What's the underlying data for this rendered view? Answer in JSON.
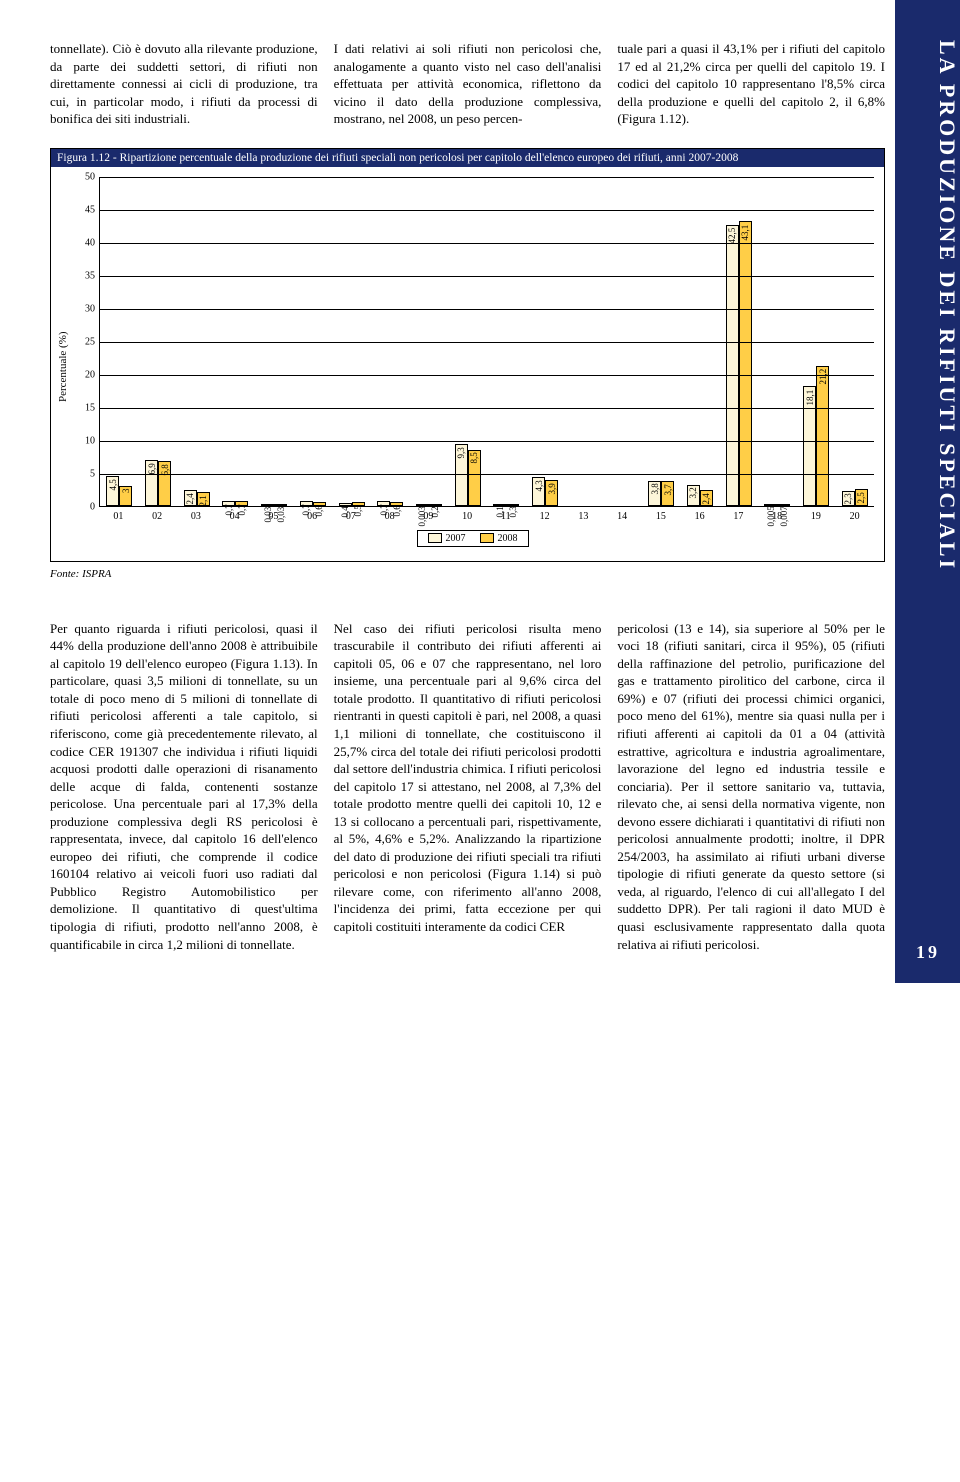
{
  "sidebar": {
    "title": "LA PRODUZIONE DEI RIFIUTI SPECIALI"
  },
  "page_number": "19",
  "top_paragraphs": {
    "col1": "tonnellate). Ciò è dovuto alla rilevante produzione, da parte dei suddetti settori, di rifiuti non direttamente connessi ai cicli di produzione, tra cui, in particolar modo, i rifiuti da processi di bonifica dei siti industriali.",
    "col2": "I dati relativi ai soli rifiuti non pericolosi che, analogamente a quanto visto nel caso dell'analisi effettuata per attività economica, riflettono da vicino il dato della produzione complessiva, mostrano, nel 2008, un peso percen-",
    "col3": "tuale pari a quasi il 43,1% per i rifiuti del capitolo 17 ed al 21,2% circa per quelli del capitolo 19. I codici del capitolo 10 rappresentano l'8,5% circa della produzione e quelli del capitolo 2, il 6,8% (Figura 1.12)."
  },
  "figure": {
    "title": "Figura 1.12 - Ripartizione percentuale della produzione dei rifiuti speciali non pericolosi per capitolo dell'elenco europeo dei rifiuti, anni 2007-2008",
    "ylabel": "Percentuale (%)",
    "ylim": [
      0,
      50
    ],
    "ytick_step": 5,
    "colors": {
      "2007": "#fdf6d9",
      "2008": "#ffce47",
      "grid": "#000000",
      "bg": "#ffffff"
    },
    "categories": [
      "01",
      "02",
      "03",
      "04",
      "05",
      "06",
      "07",
      "08",
      "09",
      "10",
      "11",
      "12",
      "13",
      "14",
      "15",
      "16",
      "17",
      "18",
      "19",
      "20"
    ],
    "series": [
      {
        "name": "2007",
        "values": [
          4.5,
          6.9,
          2.4,
          0.7,
          0.03,
          0.7,
          0.4,
          0.7,
          0.003,
          9.3,
          0.1,
          4.3,
          null,
          null,
          3.8,
          3.2,
          42.5,
          0.005,
          18.1,
          2.3
        ]
      },
      {
        "name": "2008",
        "values": [
          3.0,
          6.8,
          2.1,
          0.7,
          0.03,
          0.6,
          0.5,
          0.6,
          0.2,
          8.5,
          0.3,
          3.9,
          null,
          null,
          3.7,
          2.4,
          43.1,
          0.007,
          21.2,
          2.5
        ]
      }
    ],
    "legend": [
      "2007",
      "2008"
    ],
    "fonte": "Fonte: ISPRA"
  },
  "bottom_paragraphs": {
    "col1": "Per quanto riguarda i rifiuti pericolosi, quasi il 44% della produzione dell'anno 2008 è attribuibile al capitolo 19 dell'elenco europeo (Figura 1.13). In particolare, quasi 3,5 milioni di tonnellate, su un totale di poco meno di 5 milioni di tonnellate di rifiuti pericolosi afferenti a tale capitolo, si riferiscono, come già precedentemente rilevato, al codice CER 191307 che individua i rifiuti liquidi acquosi prodotti dalle operazioni di risanamento delle acque di falda, contenenti sostanze pericolose.\nUna percentuale pari al 17,3% della produzione complessiva degli RS pericolosi è rappresentata, invece, dal capitolo 16 dell'elenco europeo dei rifiuti, che comprende il codice 160104 relativo ai veicoli fuori uso radiati dal Pubblico Registro Automobilistico per demolizione. Il quantitativo di quest'ultima tipologia di rifiuti, prodotto nell'anno 2008, è quantificabile in circa 1,2 milioni di tonnellate.",
    "col2": "Nel caso dei rifiuti pericolosi risulta meno trascurabile il contributo dei rifiuti afferenti ai capitoli 05, 06 e 07 che rappresentano, nel loro insieme, una percentuale pari al 9,6% circa del totale prodotto. Il quantitativo di rifiuti pericolosi rientranti in questi capitoli è pari, nel 2008, a quasi 1,1 milioni di tonnellate, che costituiscono il 25,7% circa del totale dei rifiuti pericolosi prodotti dal settore dell'industria chimica.\nI rifiuti pericolosi del capitolo 17 si attestano, nel 2008, al 7,3% del totale prodotto mentre quelli dei capitoli 10, 12 e 13 si collocano a percentuali pari, rispettivamente, al 5%, 4,6% e 5,2%.\nAnalizzando la ripartizione del dato di produzione dei rifiuti speciali tra rifiuti pericolosi e non pericolosi (Figura 1.14) si può rilevare come, con riferimento all'anno 2008, l'incidenza dei primi, fatta eccezione per qui capitoli costituiti interamente da codici CER",
    "col3": "pericolosi (13 e 14), sia superiore al 50% per le voci 18 (rifiuti sanitari, circa il 95%), 05 (rifiuti della raffinazione del petrolio, purificazione del gas e trattamento pirolitico del carbone, circa il 69%) e 07 (rifiuti dei processi chimici organici, poco meno del 61%), mentre sia quasi nulla per i rifiuti afferenti ai capitoli da 01 a 04 (attività estrattive, agricoltura e industria agroalimentare, lavorazione del legno ed industria tessile e conciaria).\nPer il settore sanitario va, tuttavia, rilevato che, ai sensi della normativa vigente, non devono essere dichiarati i quantitativi di rifiuti non pericolosi annualmente prodotti; inoltre, il DPR 254/2003, ha assimilato ai rifiuti urbani diverse tipologie di rifiuti generate da questo settore (si veda, al riguardo, l'elenco di cui all'allegato I del suddetto DPR). Per tali ragioni il dato MUD è quasi esclusivamente rappresentato dalla quota relativa ai rifiuti pericolosi."
  }
}
